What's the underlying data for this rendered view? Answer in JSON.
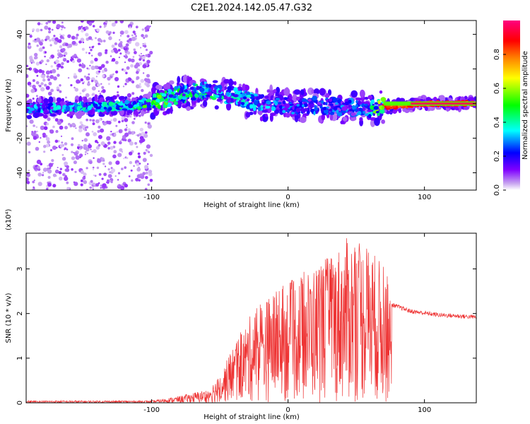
{
  "title": "C2E1.2024.142.05.47.G32",
  "chart_data": [
    {
      "type": "heatmap",
      "xlabel": "Height of straight line (km)",
      "ylabel": "Frequency (Hz)",
      "xlim": [
        -192,
        138
      ],
      "ylim": [
        -50,
        48
      ],
      "x_ticks": [
        -100,
        0,
        100
      ],
      "y_ticks": [
        40,
        20,
        0,
        -20,
        -40
      ],
      "colorbar": {
        "label": "Normalized spectral amplitude",
        "range": [
          0.0,
          1.0
        ],
        "ticks": [
          0.0,
          0.2,
          0.4,
          0.6,
          0.8
        ],
        "colormap": [
          "#ffffff",
          "#c7a3f0",
          "#7f00ff",
          "#0000ff",
          "#00ffff",
          "#00ff00",
          "#ffff00",
          "#ff8000",
          "#ff0000",
          "#ff0080"
        ]
      },
      "ridge": [
        {
          "x": -192,
          "y": -3,
          "amp": 0.35
        },
        {
          "x": -150,
          "y": -2,
          "amp": 0.4
        },
        {
          "x": -110,
          "y": -1,
          "amp": 0.45
        },
        {
          "x": -100,
          "y": 1,
          "amp": 0.6
        },
        {
          "x": -80,
          "y": 5,
          "amp": 0.5
        },
        {
          "x": -60,
          "y": 8,
          "amp": 0.45
        },
        {
          "x": -40,
          "y": 4,
          "amp": 0.4
        },
        {
          "x": -20,
          "y": 0,
          "amp": 0.35
        },
        {
          "x": 0,
          "y": -1,
          "amp": 0.3
        },
        {
          "x": 20,
          "y": -1,
          "amp": 0.3
        },
        {
          "x": 40,
          "y": -2,
          "amp": 0.3
        },
        {
          "x": 60,
          "y": -3,
          "amp": 0.35
        },
        {
          "x": 70,
          "y": -2,
          "amp": 0.9
        },
        {
          "x": 100,
          "y": 0,
          "amp": 0.95
        },
        {
          "x": 138,
          "y": 0,
          "amp": 0.95
        }
      ]
    },
    {
      "type": "line",
      "xlabel": "Height of straight line (km)",
      "ylabel": "SNR (10 * v/v)",
      "y_multiplier": "(x10⁴)",
      "xlim": [
        -192,
        138
      ],
      "ylim": [
        0,
        3.8
      ],
      "x_ticks": [
        -100,
        0,
        100
      ],
      "y_ticks": [
        0,
        1,
        2,
        3
      ],
      "color": "#ee3333",
      "envelope": [
        {
          "x": -192,
          "y": 0.05
        },
        {
          "x": -100,
          "y": 0.05
        },
        {
          "x": -80,
          "y": 0.15
        },
        {
          "x": -60,
          "y": 0.3
        },
        {
          "x": -50,
          "y": 0.6
        },
        {
          "x": -40,
          "y": 1.3
        },
        {
          "x": -25,
          "y": 2.1
        },
        {
          "x": -10,
          "y": 2.5
        },
        {
          "x": 10,
          "y": 2.9
        },
        {
          "x": 30,
          "y": 3.3
        },
        {
          "x": 45,
          "y": 3.75
        },
        {
          "x": 60,
          "y": 3.5
        },
        {
          "x": 72,
          "y": 3.0
        },
        {
          "x": 76,
          "y": 2.2
        },
        {
          "x": 90,
          "y": 2.05
        },
        {
          "x": 110,
          "y": 1.97
        },
        {
          "x": 138,
          "y": 1.92
        }
      ]
    }
  ]
}
